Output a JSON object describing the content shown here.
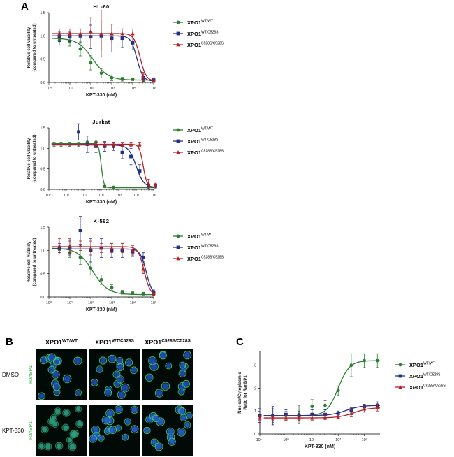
{
  "figure": {
    "panel_labels": [
      "A",
      "B",
      "C"
    ]
  },
  "colors": {
    "wt": "#2e7d32",
    "het": "#1f2f8a",
    "hom": "#b22222"
  },
  "legend_series": [
    {
      "base": "XPO1",
      "sup": "WT/WT",
      "marker": "circle"
    },
    {
      "base": "XPO1",
      "sup": "WT/C528S",
      "marker": "square"
    },
    {
      "base": "XPO1",
      "sup": "C528S/C528S",
      "marker": "triangle"
    }
  ],
  "microscopy": {
    "columns": [
      {
        "base": "XPO1",
        "sup": "WT/WT"
      },
      {
        "base": "XPO1",
        "sup": "WT/C528S"
      },
      {
        "base": "XPO1",
        "sup": "C528S/C528S"
      }
    ],
    "rows": [
      "DMSO",
      "KPT-330"
    ],
    "stain": "RanBP1"
  },
  "chart_data": [
    {
      "type": "line",
      "title": "HL-60",
      "xlabel": "KPT-330 (nM)",
      "ylabel": [
        "Relative cell viability",
        "(compared to untreated)"
      ],
      "xscale": "log",
      "xlim_exp": [
        0,
        5
      ],
      "xticks": [
        "10⁰",
        "10¹",
        "10²",
        "10³",
        "10⁴",
        "10⁵"
      ],
      "ylim": [
        0,
        1.5
      ],
      "yticks": [
        "0.0",
        "0.5",
        "1.0",
        "1.5"
      ],
      "legend": "right",
      "series": [
        {
          "name": "XPO1 WT/WT",
          "x_log": [
            0.5,
            1,
            1.5,
            2,
            2.5,
            3,
            3.5,
            4,
            4.5,
            5
          ],
          "y": [
            0.9,
            0.88,
            0.72,
            0.42,
            0.2,
            0.1,
            0.07,
            0.07,
            0.06,
            0.05
          ],
          "err": [
            0.1,
            0.1,
            0.15,
            0.15,
            0.1,
            0.06,
            0.04,
            0.03,
            0.03,
            0.03
          ],
          "fit": {
            "top": 0.95,
            "bottom": 0.05,
            "logIC50": 2.1,
            "hill": 1.2
          }
        },
        {
          "name": "XPO1 WT/C528S",
          "x_log": [
            0.5,
            1,
            1.5,
            2,
            2.5,
            3,
            3.5,
            4,
            4.5,
            5
          ],
          "y": [
            0.98,
            0.98,
            1.0,
            0.98,
            1.0,
            0.95,
            0.95,
            0.85,
            0.1,
            0.05
          ],
          "err": [
            0.1,
            0.1,
            0.15,
            0.25,
            0.3,
            0.3,
            0.2,
            0.15,
            0.08,
            0.05
          ],
          "fit": {
            "top": 1.0,
            "bottom": 0.03,
            "logIC50": 4.2,
            "hill": 3
          }
        },
        {
          "name": "XPO1 C528S/C528S",
          "x_log": [
            0.5,
            1,
            1.5,
            2,
            2.5,
            3,
            3.5,
            4,
            4.5,
            5
          ],
          "y": [
            1.05,
            1.05,
            1.05,
            1.1,
            1.05,
            1.05,
            1.05,
            1.05,
            0.12,
            0.05
          ],
          "err": [
            0.1,
            0.1,
            0.1,
            0.3,
            0.5,
            0.2,
            0.1,
            0.1,
            0.1,
            0.05
          ],
          "fit": {
            "top": 1.05,
            "bottom": 0.03,
            "logIC50": 4.35,
            "hill": 3
          }
        }
      ]
    },
    {
      "type": "line",
      "title": "Jurkat",
      "xlabel": "KPT-330 (nM)",
      "ylabel": [
        "Relative cell viability",
        "(compared to untreated)"
      ],
      "xscale": "log",
      "xlim_exp": [
        -1,
        5
      ],
      "xticks": [
        "10⁻¹",
        "10⁰",
        "10¹",
        "10²",
        "10³",
        "10⁴",
        "10⁵"
      ],
      "ylim": [
        0,
        1.5
      ],
      "yticks": [
        "0.0",
        "0.5",
        "1.0",
        "1.5"
      ],
      "legend": "right",
      "series": [
        {
          "name": "XPO1 WT/WT",
          "x_log": [
            -0.7,
            -0.3,
            0.2,
            0.7,
            1.2,
            1.7,
            2.2,
            2.7
          ],
          "y": [
            1.1,
            1.1,
            1.1,
            1.1,
            1.15,
            1.15,
            0.07,
            0.05
          ],
          "err": [
            0.05,
            0.05,
            0.05,
            0.05,
            0.05,
            0.05,
            0.03,
            0.02
          ],
          "fit": {
            "top": 1.12,
            "bottom": 0.04,
            "logIC50": 2.0,
            "hill": 6
          }
        },
        {
          "name": "XPO1 WT/C528S",
          "x_log": [
            0.7,
            1.2,
            1.7,
            2.2,
            2.7,
            3.2,
            3.7,
            4.2,
            4.7,
            5.1
          ],
          "y": [
            1.4,
            1.1,
            1.05,
            1.05,
            1.05,
            0.9,
            0.8,
            0.45,
            0.1,
            0.08
          ],
          "err": [
            0.2,
            0.2,
            0.15,
            0.12,
            0.1,
            0.15,
            0.2,
            0.15,
            0.08,
            0.05
          ],
          "fit": {
            "top": 1.08,
            "bottom": 0.05,
            "logIC50": 4.0,
            "hill": 2
          }
        },
        {
          "name": "XPO1 C528S/C528S",
          "x_log": [
            1.7,
            2.2,
            2.7,
            3.2,
            3.7,
            4.2,
            4.7,
            5.1
          ],
          "y": [
            1.1,
            1.1,
            1.1,
            1.1,
            1.1,
            1.1,
            0.15,
            0.1
          ],
          "err": [
            0.05,
            0.05,
            0.05,
            0.05,
            0.05,
            0.05,
            0.1,
            0.05
          ],
          "fit": {
            "top": 1.1,
            "bottom": 0.05,
            "logIC50": 4.4,
            "hill": 4
          }
        }
      ]
    },
    {
      "type": "line",
      "title": "K-562",
      "xlabel": "KPT-330 (nM)",
      "ylabel": [
        "Relative cell viability",
        "(compared to untreated)"
      ],
      "xscale": "log",
      "xlim_exp": [
        0,
        5
      ],
      "xticks": [
        "10⁰",
        "10¹",
        "10²",
        "10³",
        "10⁴",
        "10⁵"
      ],
      "ylim": [
        0,
        1.5
      ],
      "yticks": [
        "0.0",
        "0.5",
        "1.0",
        "1.5"
      ],
      "legend": "right",
      "series": [
        {
          "name": "XPO1 WT/WT",
          "x_log": [
            0.5,
            1,
            1.5,
            2,
            2.5,
            3,
            3.5,
            4,
            4.5,
            5
          ],
          "y": [
            1.02,
            0.95,
            0.85,
            0.62,
            0.37,
            0.2,
            0.1,
            0.08,
            0.07,
            0.06
          ],
          "err": [
            0.1,
            0.1,
            0.15,
            0.15,
            0.1,
            0.06,
            0.04,
            0.03,
            0.03,
            0.03
          ],
          "fit": {
            "top": 1.05,
            "bottom": 0.05,
            "logIC50": 2.1,
            "hill": 1.2
          }
        },
        {
          "name": "XPO1 WT/C528S",
          "x_log": [
            0.5,
            1,
            1.5,
            2,
            2.5,
            3,
            3.5,
            4,
            4.5,
            5
          ],
          "y": [
            1.05,
            1.05,
            1.43,
            1.0,
            1.05,
            1.0,
            1.0,
            0.97,
            0.85,
            0.1
          ],
          "err": [
            0.1,
            0.15,
            0.3,
            0.25,
            0.2,
            0.15,
            0.15,
            0.1,
            0.1,
            0.05
          ],
          "fit": {
            "top": 1.03,
            "bottom": 0.03,
            "logIC50": 4.65,
            "hill": 3
          }
        },
        {
          "name": "XPO1 C528S/C528S",
          "x_log": [
            0.5,
            1,
            1.5,
            2,
            2.5,
            3,
            3.5,
            4,
            4.5,
            5
          ],
          "y": [
            1.1,
            1.1,
            1.1,
            1.05,
            1.05,
            1.05,
            1.05,
            1.0,
            0.6,
            0.08
          ],
          "err": [
            0.15,
            0.15,
            0.1,
            0.15,
            0.1,
            0.1,
            0.1,
            0.1,
            0.1,
            0.05
          ],
          "fit": {
            "top": 1.08,
            "bottom": 0.03,
            "logIC50": 4.55,
            "hill": 3
          }
        }
      ]
    },
    {
      "type": "line",
      "title": "",
      "xlabel": "KPT-330 (nM)",
      "ylabel": [
        "Nuclear/Cytoplasmic",
        "Ratio for RanBP1"
      ],
      "xscale": "log",
      "xlim_exp": [
        -1,
        3.6
      ],
      "xticks": [
        "10⁻¹",
        "10⁰",
        "10¹",
        "10²",
        "10³"
      ],
      "ylim": [
        0,
        3.6
      ],
      "yticks": [
        "0",
        "1",
        "2",
        "3"
      ],
      "legend": "right",
      "series": [
        {
          "name": "XPO1 WT/WT",
          "x_log": [
            -1,
            -0.5,
            0,
            0.5,
            1,
            1.5,
            2,
            2.5,
            3,
            3.5
          ],
          "y": [
            0.8,
            0.8,
            0.8,
            0.85,
            1.2,
            1.25,
            1.9,
            3.0,
            3.2,
            3.2
          ],
          "err": [
            0.3,
            0.3,
            0.2,
            0.4,
            0.3,
            0.2,
            0.2,
            0.5,
            0.3,
            0.3
          ],
          "fit": {
            "top": 3.2,
            "bottom": 0.8,
            "logIC50": 2.0,
            "hill": 2
          }
        },
        {
          "name": "XPO1 WT/C528S",
          "x_log": [
            -1,
            -0.5,
            0,
            0.5,
            1,
            1.5,
            2,
            2.5,
            3,
            3.5
          ],
          "y": [
            0.8,
            0.8,
            0.85,
            0.8,
            0.85,
            0.85,
            0.9,
            1.05,
            1.2,
            1.25
          ],
          "err": [
            0.3,
            0.4,
            0.2,
            0.2,
            0.2,
            0.2,
            0.1,
            0.1,
            0.1,
            0.15
          ],
          "fit": {
            "top": 1.25,
            "bottom": 0.8,
            "logIC50": 2.3,
            "hill": 1.5
          }
        },
        {
          "name": "XPO1 C528S/C528S",
          "x_log": [
            -1,
            -0.5,
            0,
            0.5,
            1,
            1.5,
            2,
            2.5,
            3,
            3.5
          ],
          "y": [
            0.7,
            0.7,
            0.7,
            0.7,
            0.7,
            0.72,
            0.75,
            0.9,
            1.1,
            1.15
          ],
          "err": [
            0.1,
            0.1,
            0.1,
            0.1,
            0.1,
            0.1,
            0.1,
            0.15,
            0.15,
            0.15
          ],
          "fit": {
            "top": 1.15,
            "bottom": 0.7,
            "logIC50": 2.6,
            "hill": 1.5
          }
        }
      ]
    }
  ]
}
